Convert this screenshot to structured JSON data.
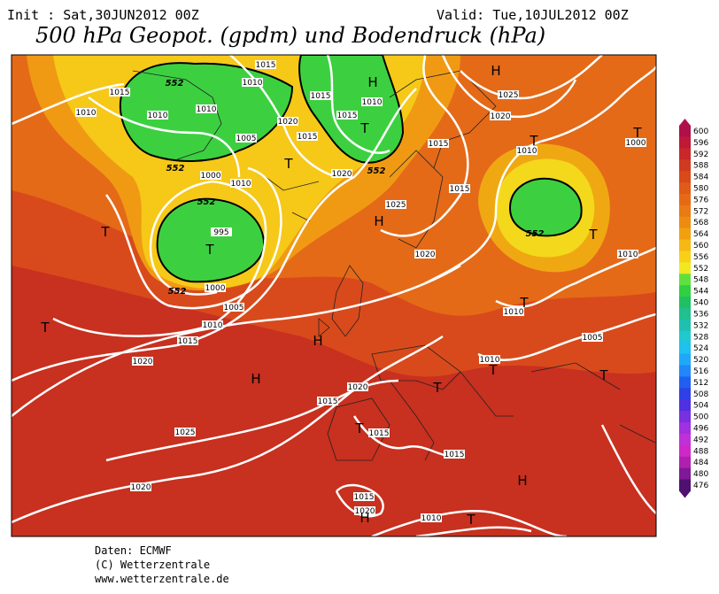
{
  "header": {
    "init": "Init : Sat,30JUN2012 00Z",
    "valid": "Valid: Tue,10JUL2012 00Z",
    "title": "500 hPa Geopot. (gpdm) und Bodendruck (hPa)"
  },
  "map": {
    "isobar_labels": [
      1015,
      1010,
      1015,
      1010,
      1010,
      1010,
      1005,
      1020,
      1015,
      1015,
      1015,
      1010,
      1010,
      1000,
      995,
      1000,
      1005,
      1010,
      1015,
      1020,
      1020,
      1025,
      1020,
      1015,
      1015,
      1010,
      1025,
      1020,
      1000,
      1010,
      1010,
      1005,
      1010,
      1020,
      1015,
      1015,
      1025,
      1015,
      1015,
      1020,
      1010,
      1020
    ],
    "height_labels": [
      552,
      552,
      552,
      552,
      552,
      552
    ],
    "centers": [
      "H",
      "H",
      "T",
      "T",
      "T",
      "T",
      "T",
      "H",
      "H",
      "H",
      "T",
      "T",
      "T",
      "T",
      "T",
      "T",
      "T",
      "T",
      "H",
      "T",
      "H"
    ]
  },
  "colorbar": {
    "labels": [
      600,
      596,
      592,
      588,
      584,
      580,
      576,
      572,
      568,
      564,
      560,
      556,
      552,
      548,
      544,
      540,
      536,
      532,
      528,
      524,
      520,
      516,
      512,
      508,
      504,
      500,
      496,
      492,
      488,
      484,
      480,
      476
    ],
    "colors": [
      "#b0104a",
      "#c01838",
      "#c82828",
      "#d03a20",
      "#d84a1a",
      "#e05a18",
      "#e66a16",
      "#ea7a14",
      "#ee8c12",
      "#f2a010",
      "#f6b812",
      "#f8d018",
      "#f0e820",
      "#60e040",
      "#30d040",
      "#20c060",
      "#20c090",
      "#20c0b0",
      "#20c8d0",
      "#20c0f0",
      "#20a8f8",
      "#2088f8",
      "#2060f0",
      "#3040e8",
      "#5030e0",
      "#7830e0",
      "#a030e0",
      "#c030d8",
      "#d028c8",
      "#b020b0",
      "#801898",
      "#501070"
    ]
  },
  "footer": {
    "lines": [
      "Daten: ECMWF",
      "(C) Wetterzentrale",
      "www.wetterzentrale.de"
    ]
  }
}
